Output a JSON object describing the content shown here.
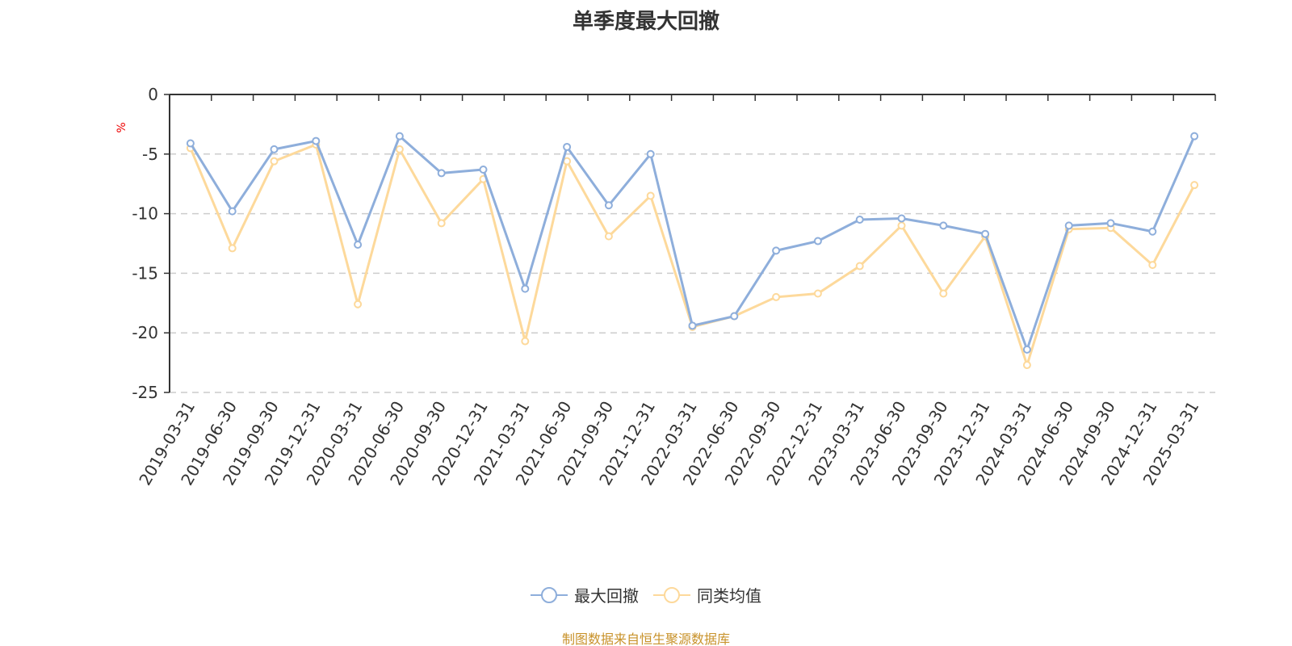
{
  "title": "单季度最大回撤",
  "source": "制图数据来自恒生聚源数据库",
  "chart_data": {
    "type": "line",
    "title": "单季度最大回撤",
    "ylabel": "%",
    "ylim": [
      -25,
      0
    ],
    "yticks": [
      0,
      -5,
      -10,
      -15,
      -20,
      -25
    ],
    "grid": true,
    "legend_position": "bottom",
    "categories": [
      "2019-03-31",
      "2019-06-30",
      "2019-09-30",
      "2019-12-31",
      "2020-03-31",
      "2020-06-30",
      "2020-09-30",
      "2020-12-31",
      "2021-03-31",
      "2021-06-30",
      "2021-09-30",
      "2021-12-31",
      "2022-03-31",
      "2022-06-30",
      "2022-09-30",
      "2022-12-31",
      "2023-03-31",
      "2023-06-30",
      "2023-09-30",
      "2023-12-31",
      "2024-03-31",
      "2024-06-30",
      "2024-09-30",
      "2024-12-31",
      "2025-03-31"
    ],
    "series": [
      {
        "name": "最大回撤",
        "color": "#8eaedb",
        "values": [
          -4.1,
          -9.8,
          -4.6,
          -3.9,
          -12.6,
          -3.5,
          -6.6,
          -6.3,
          -16.3,
          -4.4,
          -9.3,
          -5.0,
          -19.4,
          -18.6,
          -13.1,
          -12.3,
          -10.5,
          -10.4,
          -11.0,
          -11.7,
          -21.4,
          -11.0,
          -10.8,
          -11.5,
          -3.5
        ]
      },
      {
        "name": "同类均值",
        "color": "#fdd99b",
        "values": [
          -4.5,
          -12.9,
          -5.6,
          -4.2,
          -17.6,
          -4.6,
          -10.8,
          -7.1,
          -20.7,
          -5.6,
          -11.9,
          -8.5,
          -19.5,
          -18.6,
          -17.0,
          -16.7,
          -14.4,
          -11.0,
          -16.7,
          -11.9,
          -22.7,
          -11.3,
          -11.2,
          -14.3,
          -7.6
        ]
      }
    ]
  }
}
